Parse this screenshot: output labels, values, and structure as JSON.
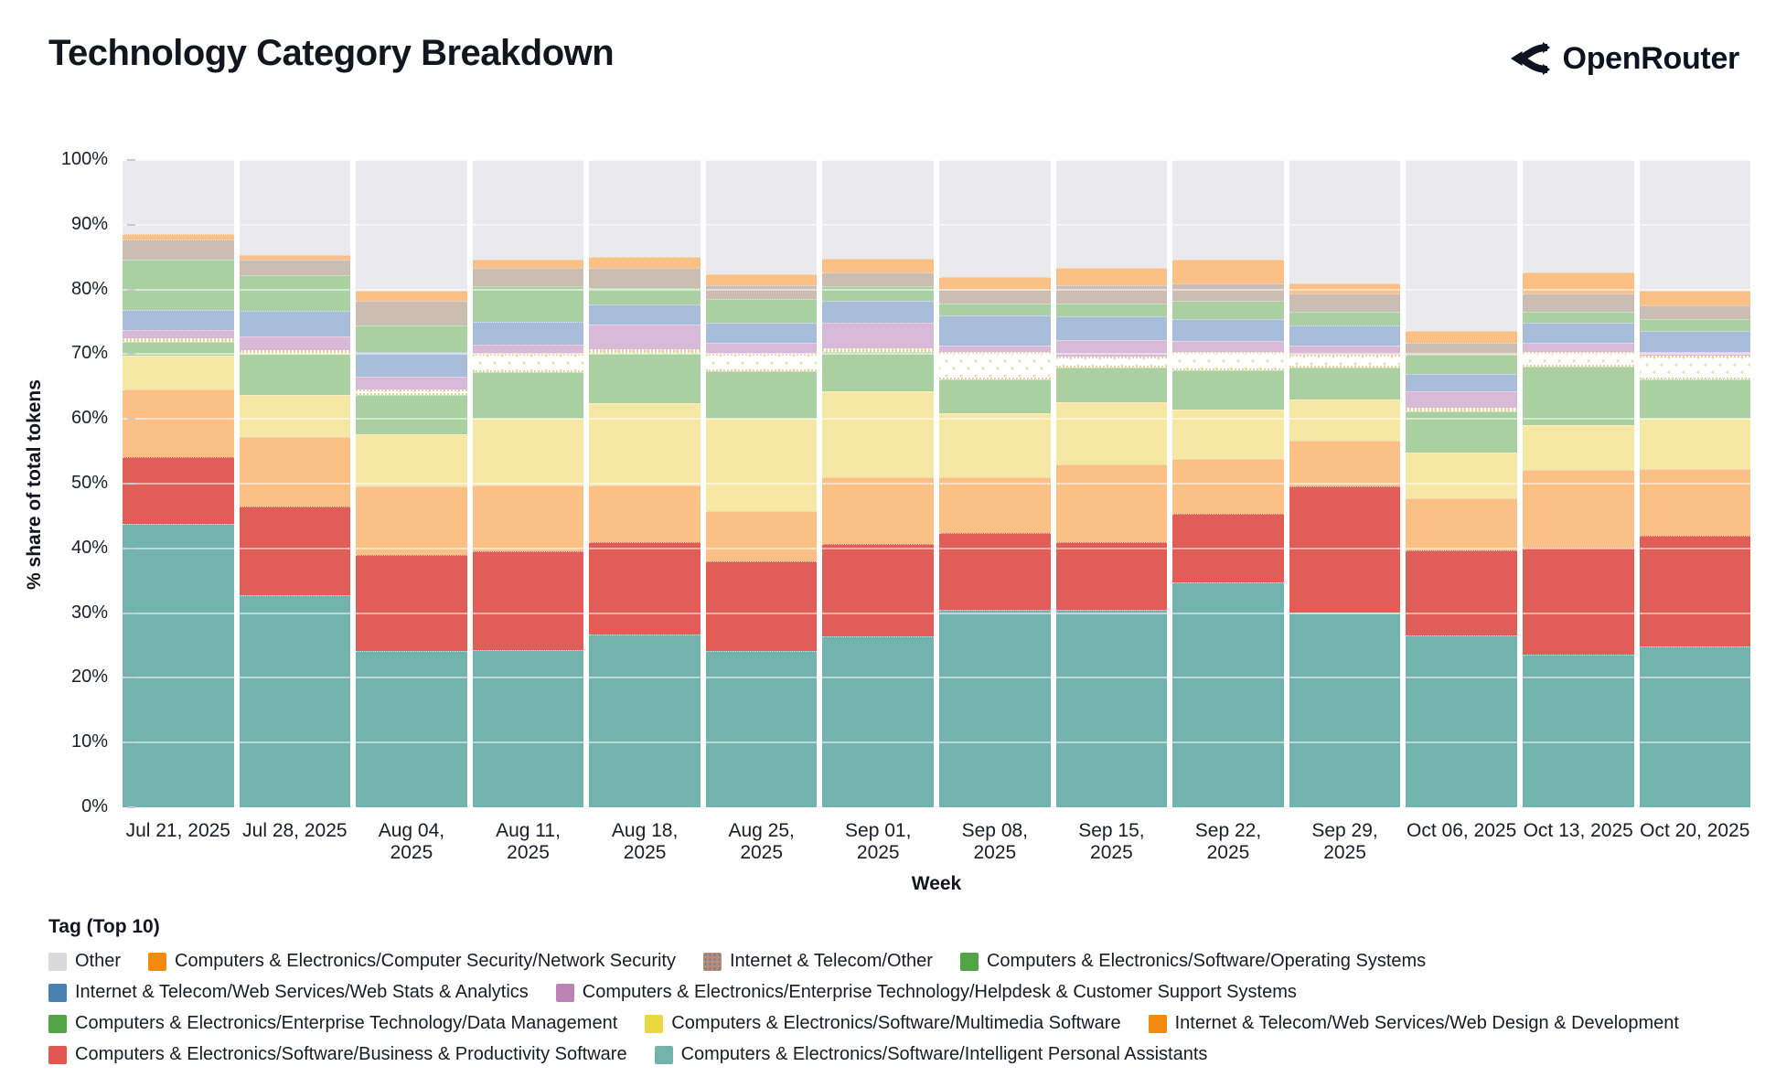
{
  "header": {
    "title": "Technology Category Breakdown",
    "brand": "OpenRouter"
  },
  "chart_data": {
    "type": "bar",
    "stacked": true,
    "title": "Technology Category Breakdown",
    "xlabel": "Week",
    "ylabel": "% share of total tokens",
    "ylim": [
      0,
      100
    ],
    "grid": true,
    "y_tick_labels": [
      "0%",
      "10%",
      "20%",
      "30%",
      "40%",
      "50%",
      "60%",
      "70%",
      "80%",
      "90%",
      "100%"
    ],
    "categories": [
      "Jul 21, 2025",
      "Jul 28, 2025",
      "Aug 04, 2025",
      "Aug 11, 2025",
      "Aug 18, 2025",
      "Aug 25, 2025",
      "Sep 01, 2025",
      "Sep 08, 2025",
      "Sep 15, 2025",
      "Sep 22, 2025",
      "Sep 29, 2025",
      "Oct 06, 2025",
      "Oct 13, 2025",
      "Oct 20, 2025"
    ],
    "series": [
      {
        "key": "ipa",
        "name": "Computers & Electronics/Software/Intelligent Personal Assistants",
        "bar_color": "#73b3ae",
        "values": [
          44.0,
          32.8,
          24.1,
          24.3,
          26.8,
          24.2,
          26.4,
          30.5,
          30.5,
          34.8,
          30.1,
          26.5,
          23.6,
          24.8
        ]
      },
      {
        "key": "bnp",
        "name": "Computers & Electronics/Software/Business & Productivity Software",
        "bar_color": "#e15d57",
        "values": [
          10.3,
          13.8,
          14.9,
          15.3,
          14.2,
          13.8,
          14.3,
          11.9,
          10.5,
          10.5,
          19.5,
          13.2,
          16.5,
          17.1
        ]
      },
      {
        "key": "webdesign",
        "name": "Internet & Telecom/Web Services/Web Design & Development",
        "bar_color": "#fac085",
        "values": [
          10.5,
          10.8,
          10.6,
          10.1,
          8.8,
          7.8,
          10.3,
          8.6,
          12.0,
          8.5,
          7.1,
          8.0,
          12.0,
          10.3
        ]
      },
      {
        "key": "multimedia",
        "name": "Computers & Electronics/Software/Multimedia Software",
        "bar_color": "#f6e8a4",
        "values": [
          5.2,
          6.5,
          8.0,
          10.3,
          12.8,
          14.2,
          13.2,
          9.9,
          9.6,
          7.7,
          6.3,
          7.1,
          6.9,
          7.8
        ]
      },
      {
        "key": "datamgmt",
        "name": "Computers & Electronics/Enterprise Technology/Data Management",
        "bar_color": "#aad0a2",
        "values": [
          2.2,
          6.4,
          6.1,
          7.3,
          7.7,
          7.4,
          6.1,
          5.2,
          5.4,
          6.0,
          5.0,
          6.4,
          9.1,
          6.1
        ]
      },
      {
        "key": "dotted-band",
        "name": "Internet & Telecom/Other (dotted pattern band)",
        "bar_color": "#d4c6d4",
        "pattern": "dots",
        "values": [
          0.2,
          0.3,
          0.9,
          2.8,
          0.4,
          2.7,
          0.6,
          4.2,
          1.6,
          2.8,
          1.9,
          0.5,
          2.2,
          3.7
        ]
      },
      {
        "key": "helpdesk",
        "name": "Computers & Electronics/Enterprise Technology/Helpdesk & Customer Support Systems",
        "bar_color": "#d8b9d8",
        "values": [
          1.2,
          2.0,
          2.0,
          1.4,
          3.9,
          1.7,
          3.9,
          1.0,
          2.6,
          1.7,
          1.5,
          2.5,
          1.5,
          0.5
        ]
      },
      {
        "key": "webstats",
        "name": "Internet & Telecom/Web Services/Web Stats & Analytics",
        "bar_color": "#a7bdd9",
        "values": [
          3.1,
          4.1,
          3.7,
          3.5,
          3.1,
          3.1,
          3.4,
          4.7,
          3.6,
          3.5,
          3.1,
          2.7,
          3.0,
          3.3
        ]
      },
      {
        "key": "os",
        "name": "Computers & Electronics/Software/Operating Systems",
        "bar_color": "#aad0a2",
        "values": [
          7.9,
          5.4,
          4.2,
          5.5,
          2.5,
          3.7,
          2.3,
          1.9,
          2.1,
          2.7,
          2.1,
          3.0,
          1.8,
          1.9
        ]
      },
      {
        "key": "itother",
        "name": "Internet & Telecom/Other",
        "bar_color": "#ccbdb2",
        "values": [
          3.1,
          2.4,
          3.8,
          2.8,
          3.1,
          2.1,
          2.1,
          2.1,
          2.8,
          2.7,
          2.8,
          1.9,
          2.8,
          2.0
        ]
      },
      {
        "key": "netsec",
        "name": "Computers & Electronics/Computer Security/Network Security",
        "bar_color": "#fac085",
        "values": [
          0.8,
          0.8,
          1.5,
          1.3,
          1.7,
          1.6,
          2.2,
          1.9,
          2.7,
          3.7,
          1.5,
          1.8,
          3.2,
          2.3
        ]
      },
      {
        "key": "other",
        "name": "Other",
        "bar_color": "#eaeaee",
        "values": [
          11.5,
          14.7,
          20.2,
          15.4,
          15.0,
          17.7,
          15.2,
          18.1,
          16.6,
          15.4,
          19.1,
          26.4,
          17.4,
          20.2
        ]
      }
    ],
    "legend": {
      "title": "Tag (Top 10)",
      "position": "bottom-left",
      "items": [
        {
          "label": "Other",
          "color": "#d9d9de"
        },
        {
          "label": "Computers & Electronics/Computer Security/Network Security",
          "color": "#f18a0e"
        },
        {
          "label": "Internet & Telecom/Other",
          "color": "#bd8c76",
          "pattern": "dots"
        },
        {
          "label": "Computers & Electronics/Software/Operating Systems",
          "color": "#52a447"
        },
        {
          "label": "Internet & Telecom/Web Services/Web Stats & Analytics",
          "color": "#4b80b2"
        },
        {
          "label": "Computers & Electronics/Enterprise Technology/Helpdesk & Customer Support Systems",
          "color": "#bc83b6"
        },
        {
          "label": "Computers & Electronics/Enterprise Technology/Data Management",
          "color": "#52a447"
        },
        {
          "label": "Computers & Electronics/Software/Multimedia Software",
          "color": "#e9d83f"
        },
        {
          "label": "Internet & Telecom/Web Services/Web Design & Development",
          "color": "#f18a0e"
        },
        {
          "label": "Computers & Electronics/Software/Business & Productivity Software",
          "color": "#e25752"
        },
        {
          "label": "Computers & Electronics/Software/Intelligent Personal Assistants",
          "color": "#72b3ac"
        }
      ]
    }
  }
}
